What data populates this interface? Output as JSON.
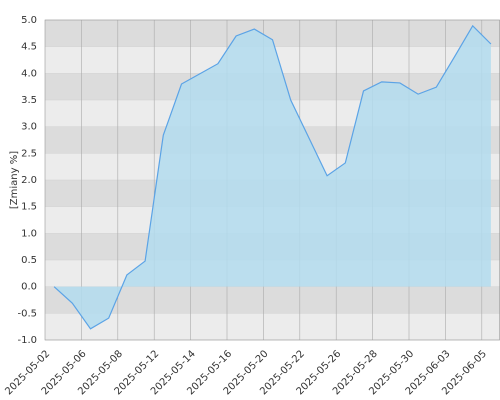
{
  "chart_data": {
    "type": "area",
    "y_label": "[Zmiany %]",
    "categories": [
      "2025-05-02",
      null,
      "2025-05-06",
      null,
      "2025-05-08",
      null,
      "2025-05-12",
      null,
      "2025-05-14",
      null,
      "2025-05-16",
      null,
      "2025-05-20",
      null,
      "2025-05-22",
      null,
      "2025-05-26",
      null,
      "2025-05-28",
      null,
      "2025-05-30",
      null,
      "2025-06-03",
      null,
      "2025-06-05"
    ],
    "values": [
      0.0,
      -0.31,
      -0.79,
      -0.59,
      0.22,
      0.48,
      2.84,
      3.8,
      3.99,
      4.18,
      4.7,
      4.83,
      4.63,
      3.5,
      2.79,
      2.08,
      2.32,
      3.67,
      3.84,
      3.82,
      3.61,
      3.74,
      4.31,
      4.89,
      4.55
    ],
    "color": "#5ba3e6",
    "fill": "#b3dcee",
    "ylim": [
      -1,
      5
    ],
    "yticks": [
      {
        "value": -1,
        "label": "-1.0"
      },
      {
        "value": -0.5,
        "label": "-0.5"
      },
      {
        "value": 0,
        "label": "0.0"
      },
      {
        "value": 0.5,
        "label": "0.5"
      },
      {
        "value": 1,
        "label": "1.0"
      },
      {
        "value": 1.5,
        "label": "1.5"
      },
      {
        "value": 2,
        "label": "2.0"
      },
      {
        "value": 2.5,
        "label": "2.5"
      },
      {
        "value": 3,
        "label": "3.0"
      },
      {
        "value": 3.5,
        "label": "3.5"
      },
      {
        "value": 4,
        "label": "4.0"
      },
      {
        "value": 4.5,
        "label": "4.5"
      },
      {
        "value": 5,
        "label": "5.0"
      }
    ],
    "grid": true
  }
}
